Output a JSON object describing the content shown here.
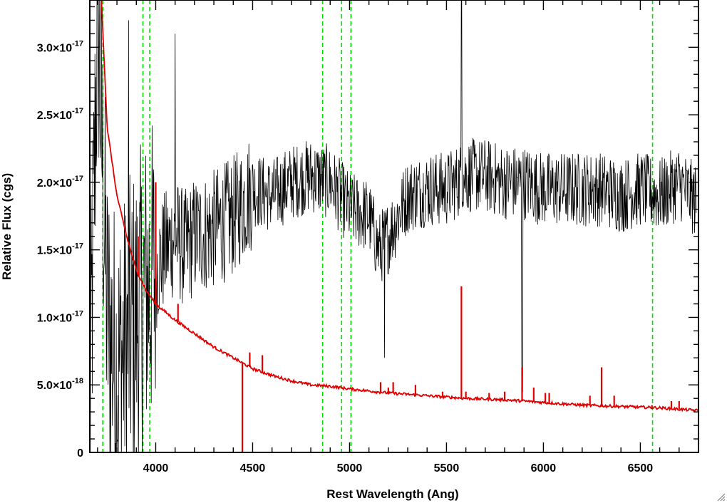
{
  "chart_data": {
    "type": "line",
    "xlabel": "Rest Wavelength (Ang)",
    "ylabel": "Relative Flux (cgs)",
    "xlim": [
      3660,
      6800
    ],
    "ylim": [
      0,
      3.35e-17
    ],
    "x_ticks": [
      {
        "value": 4000,
        "label": "4000"
      },
      {
        "value": 4500,
        "label": "4500"
      },
      {
        "value": 5000,
        "label": "5000"
      },
      {
        "value": 5500,
        "label": "5500"
      },
      {
        "value": 6000,
        "label": "6000"
      },
      {
        "value": 6500,
        "label": "6500"
      }
    ],
    "y_ticks": [
      {
        "value": 0,
        "mantissa": "0",
        "exponent": ""
      },
      {
        "value": 5e-18,
        "mantissa": "5.0×10",
        "exponent": "-18"
      },
      {
        "value": 1e-17,
        "mantissa": "1.0×10",
        "exponent": "-17"
      },
      {
        "value": 1.5e-17,
        "mantissa": "1.5×10",
        "exponent": "-17"
      },
      {
        "value": 2e-17,
        "mantissa": "2.0×10",
        "exponent": "-17"
      },
      {
        "value": 2.5e-17,
        "mantissa": "2.5×10",
        "exponent": "-17"
      },
      {
        "value": 3e-17,
        "mantissa": "3.0×10",
        "exponent": "-17"
      }
    ],
    "vertical_lines": [
      3727,
      3934,
      3969,
      4861,
      4959,
      5007,
      6563
    ],
    "colors": {
      "spectrum": "#000000",
      "noise": "#e00000",
      "lines": "#00e000",
      "axes": "#000000"
    },
    "series": [
      {
        "color": "#000000",
        "points": [
          [
            3660,
            2e-18
          ],
          [
            3700,
            3.3e-17
          ],
          [
            3750,
            1e-17
          ],
          [
            3800,
            6e-18
          ],
          [
            3850,
            8e-18
          ],
          [
            3900,
            1e-17
          ],
          [
            3950,
            1.2e-17
          ],
          [
            4000,
            1.35e-17
          ],
          [
            4050,
            1.5e-17
          ],
          [
            4100,
            1.6e-17
          ],
          [
            4150,
            1.5e-17
          ],
          [
            4200,
            1.6e-17
          ],
          [
            4300,
            1.65e-17
          ],
          [
            4400,
            1.75e-17
          ],
          [
            4500,
            1.95e-17
          ],
          [
            4600,
            1.9e-17
          ],
          [
            4700,
            2e-17
          ],
          [
            4800,
            2.05e-17
          ],
          [
            4900,
            2e-17
          ],
          [
            5000,
            1.8e-17
          ],
          [
            5100,
            1.75e-17
          ],
          [
            5150,
            1.5e-17
          ],
          [
            5200,
            1.6e-17
          ],
          [
            5300,
            1.9e-17
          ],
          [
            5400,
            1.95e-17
          ],
          [
            5500,
            1.95e-17
          ],
          [
            5600,
            2.05e-17
          ],
          [
            5700,
            2.05e-17
          ],
          [
            5800,
            2e-17
          ],
          [
            5900,
            2e-17
          ],
          [
            6000,
            1.95e-17
          ],
          [
            6100,
            1.95e-17
          ],
          [
            6200,
            1.95e-17
          ],
          [
            6300,
            1.95e-17
          ],
          [
            6400,
            1.9e-17
          ],
          [
            6500,
            1.95e-17
          ],
          [
            6600,
            1.9e-17
          ],
          [
            6700,
            2e-17
          ],
          [
            6790,
            1.85e-17
          ]
        ]
      },
      {
        "color": "#e00000",
        "points": [
          [
            3720,
            3.35e-17
          ],
          [
            3750,
            2.4e-17
          ],
          [
            3800,
            1.9e-17
          ],
          [
            3850,
            1.6e-17
          ],
          [
            3900,
            1.35e-17
          ],
          [
            3950,
            1.2e-17
          ],
          [
            4000,
            1.1e-17
          ],
          [
            4100,
            9.8e-18
          ],
          [
            4200,
            8.8e-18
          ],
          [
            4300,
            7.8e-18
          ],
          [
            4400,
            7e-18
          ],
          [
            4500,
            6.2e-18
          ],
          [
            4600,
            5.7e-18
          ],
          [
            4700,
            5.3e-18
          ],
          [
            4800,
            5e-18
          ],
          [
            4900,
            4.9e-18
          ],
          [
            5000,
            4.7e-18
          ],
          [
            5200,
            4.4e-18
          ],
          [
            5400,
            4.2e-18
          ],
          [
            5600,
            4e-18
          ],
          [
            5800,
            3.9e-18
          ],
          [
            6000,
            3.7e-18
          ],
          [
            6200,
            3.5e-18
          ],
          [
            6400,
            3.4e-18
          ],
          [
            6600,
            3.3e-18
          ],
          [
            6800,
            3.1e-18
          ]
        ],
        "spikes": [
          [
            3913,
            1.6e-17
          ],
          [
            4000,
            2e-17
          ],
          [
            4115,
            1.1e-17
          ],
          [
            4447,
            -5e-19
          ],
          [
            4485,
            7.4e-18
          ],
          [
            4550,
            7.2e-18
          ],
          [
            5160,
            5.2e-18
          ],
          [
            5200,
            4.8e-18
          ],
          [
            5225,
            5.2e-18
          ],
          [
            5340,
            5e-18
          ],
          [
            5480,
            4.5e-18
          ],
          [
            5577,
            1.23e-17
          ],
          [
            5600,
            4.5e-18
          ],
          [
            5720,
            4.4e-18
          ],
          [
            5800,
            4.5e-18
          ],
          [
            5890,
            6.3e-18
          ],
          [
            5950,
            4.8e-18
          ],
          [
            6010,
            4.4e-18
          ],
          [
            6030,
            4.4e-18
          ],
          [
            6240,
            4.2e-18
          ],
          [
            6300,
            6.3e-18
          ],
          [
            6365,
            4.2e-18
          ],
          [
            6460,
            3.5e-18
          ],
          [
            6500,
            3.4e-18
          ],
          [
            6560,
            3.5e-18
          ],
          [
            6660,
            3.8e-18
          ],
          [
            6700,
            3.8e-18
          ]
        ]
      }
    ]
  }
}
